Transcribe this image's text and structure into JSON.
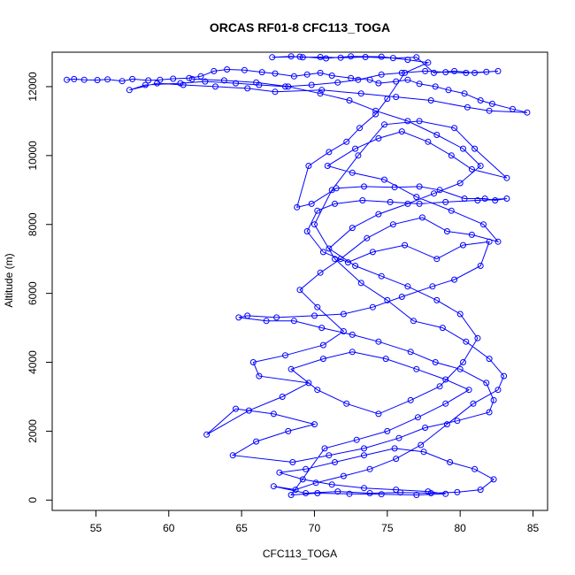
{
  "chart_data": {
    "type": "scatter",
    "title": "ORCAS RF01-8 CFC113_TOGA",
    "xlabel": "CFC113_TOGA",
    "ylabel": "Altitude (m)",
    "xlim": [
      52,
      86
    ],
    "ylim": [
      -300,
      13000
    ],
    "xticks": [
      55,
      60,
      65,
      70,
      75,
      80,
      85
    ],
    "yticks": [
      0,
      2000,
      4000,
      6000,
      8000,
      10000,
      12000
    ],
    "xtick_labels": [
      "55",
      "60",
      "65",
      "70",
      "75",
      "80",
      "85"
    ],
    "ytick_labels": [
      "0",
      "2000",
      "4000",
      "6000",
      "8000",
      "10000",
      "12000"
    ],
    "grid": false,
    "marker": "open-circle",
    "connected": true,
    "color": "#0000ff",
    "series": [
      {
        "points": [
          [
            53.0,
            12200
          ],
          [
            53.5,
            12220
          ],
          [
            54.2,
            12200
          ],
          [
            55.1,
            12190
          ],
          [
            55.8,
            12210
          ],
          [
            56.8,
            12160
          ],
          [
            57.5,
            12220
          ],
          [
            58.6,
            12180
          ],
          [
            59.4,
            12200
          ],
          [
            60.3,
            12230
          ],
          [
            61.4,
            12250
          ],
          [
            62.2,
            12300
          ],
          [
            63.1,
            12450
          ],
          [
            64.0,
            12500
          ],
          [
            65.2,
            12480
          ],
          [
            66.4,
            12420
          ],
          [
            67.3,
            12380
          ],
          [
            68.6,
            12300
          ],
          [
            69.5,
            12350
          ],
          [
            70.4,
            12400
          ],
          [
            71.2,
            12320
          ],
          [
            72.5,
            12250
          ],
          [
            73.8,
            12200
          ],
          [
            74.4,
            12100
          ],
          [
            75.6,
            12150
          ],
          [
            76.4,
            12200
          ],
          [
            77.2,
            12080
          ],
          [
            78.3,
            12000
          ],
          [
            79.2,
            11900
          ],
          [
            80.3,
            11800
          ],
          [
            81.4,
            11600
          ],
          [
            82.2,
            11500
          ],
          [
            83.6,
            11350
          ],
          [
            84.6,
            11250
          ],
          [
            82.0,
            11300
          ],
          [
            80.5,
            11400
          ],
          [
            78.0,
            11600
          ],
          [
            75.6,
            11700
          ],
          [
            73.2,
            11800
          ],
          [
            70.5,
            11900
          ],
          [
            67.3,
            11850
          ],
          [
            65.4,
            11950
          ],
          [
            63.2,
            12000
          ],
          [
            61.0,
            12050
          ],
          [
            59.2,
            12100
          ],
          [
            57.3,
            11900
          ],
          [
            58.4,
            12050
          ],
          [
            60.8,
            12100
          ],
          [
            62.5,
            12150
          ],
          [
            64.6,
            12100
          ],
          [
            66.2,
            12050
          ],
          [
            68.0,
            12000
          ],
          [
            69.8,
            12050
          ],
          [
            71.6,
            12120
          ],
          [
            73.0,
            12200
          ],
          [
            74.6,
            12350
          ],
          [
            76.0,
            12400
          ],
          [
            77.6,
            12450
          ],
          [
            79.0,
            12420
          ],
          [
            80.4,
            12400
          ],
          [
            81.8,
            12430
          ],
          [
            82.6,
            12450
          ],
          [
            81.0,
            12400
          ],
          [
            79.6,
            12450
          ],
          [
            78.2,
            12400
          ],
          [
            77.0,
            12850
          ],
          [
            75.4,
            12830
          ],
          [
            73.5,
            12860
          ],
          [
            71.8,
            12840
          ],
          [
            70.4,
            12860
          ],
          [
            69.2,
            12850
          ],
          [
            68.4,
            12880
          ],
          [
            67.1,
            12850
          ],
          [
            69.0,
            12870
          ],
          [
            70.8,
            12820
          ],
          [
            72.5,
            12880
          ],
          [
            74.6,
            12870
          ],
          [
            76.4,
            12780
          ],
          [
            77.8,
            12700
          ],
          [
            76.2,
            12400
          ],
          [
            75.0,
            11650
          ],
          [
            74.2,
            11200
          ],
          [
            73.1,
            10800
          ],
          [
            72.2,
            10400
          ],
          [
            71.0,
            10100
          ],
          [
            69.6,
            9700
          ],
          [
            68.8,
            8500
          ],
          [
            69.8,
            8600
          ],
          [
            71.5,
            9050
          ],
          [
            73.4,
            9100
          ],
          [
            75.5,
            9080
          ],
          [
            77.2,
            9100
          ],
          [
            78.6,
            9000
          ],
          [
            80.3,
            8750
          ],
          [
            81.7,
            8750
          ],
          [
            82.4,
            8700
          ],
          [
            83.2,
            8750
          ],
          [
            81.2,
            8700
          ],
          [
            79.0,
            8650
          ],
          [
            77.2,
            8600
          ],
          [
            75.2,
            8650
          ],
          [
            73.3,
            8700
          ],
          [
            71.4,
            8600
          ],
          [
            70.2,
            8400
          ],
          [
            69.5,
            7800
          ],
          [
            70.6,
            7200
          ],
          [
            72.3,
            6900
          ],
          [
            74.0,
            7200
          ],
          [
            76.2,
            7400
          ],
          [
            78.4,
            7000
          ],
          [
            80.2,
            7400
          ],
          [
            82.0,
            7500
          ],
          [
            81.4,
            6800
          ],
          [
            79.6,
            6400
          ],
          [
            78.1,
            6200
          ],
          [
            76.0,
            5900
          ],
          [
            74.0,
            5600
          ],
          [
            72.0,
            5400
          ],
          [
            70.0,
            5350
          ],
          [
            67.4,
            5300
          ],
          [
            65.4,
            5350
          ],
          [
            64.8,
            5300
          ],
          [
            66.7,
            5200
          ],
          [
            68.6,
            5200
          ],
          [
            70.5,
            5000
          ],
          [
            72.6,
            4800
          ],
          [
            74.4,
            4600
          ],
          [
            76.6,
            4300
          ],
          [
            78.3,
            4000
          ],
          [
            80.0,
            3800
          ],
          [
            81.8,
            3400
          ],
          [
            82.3,
            2900
          ],
          [
            82.0,
            2550
          ],
          [
            79.8,
            2300
          ],
          [
            77.6,
            2100
          ],
          [
            75.8,
            1800
          ],
          [
            73.4,
            1500
          ],
          [
            71.0,
            1300
          ],
          [
            68.5,
            1100
          ],
          [
            64.4,
            1300
          ],
          [
            66.0,
            1700
          ],
          [
            68.2,
            2000
          ],
          [
            70.0,
            2200
          ],
          [
            67.2,
            2500
          ],
          [
            64.6,
            2650
          ],
          [
            62.6,
            1900
          ],
          [
            65.5,
            2600
          ],
          [
            67.8,
            3000
          ],
          [
            69.6,
            3400
          ],
          [
            66.2,
            3600
          ],
          [
            65.8,
            4000
          ],
          [
            68.0,
            4200
          ],
          [
            70.6,
            4500
          ],
          [
            72.0,
            4900
          ],
          [
            70.2,
            5600
          ],
          [
            69.0,
            6100
          ],
          [
            70.4,
            6600
          ],
          [
            71.8,
            7000
          ],
          [
            73.6,
            7600
          ],
          [
            75.4,
            8000
          ],
          [
            77.4,
            8200
          ],
          [
            79.1,
            7800
          ],
          [
            80.8,
            7700
          ],
          [
            82.6,
            7500
          ],
          [
            81.6,
            8000
          ],
          [
            79.4,
            8400
          ],
          [
            77.0,
            8800
          ],
          [
            74.8,
            9300
          ],
          [
            72.6,
            9500
          ],
          [
            70.9,
            9700
          ],
          [
            72.8,
            10200
          ],
          [
            74.4,
            10500
          ],
          [
            76.0,
            10700
          ],
          [
            77.8,
            10400
          ],
          [
            79.4,
            10000
          ],
          [
            80.8,
            9600
          ],
          [
            83.2,
            9350
          ],
          [
            81.0,
            10200
          ],
          [
            79.6,
            10800
          ],
          [
            77.2,
            11000
          ],
          [
            74.8,
            10900
          ],
          [
            73.0,
            10000
          ],
          [
            71.2,
            9000
          ],
          [
            70.0,
            8000
          ],
          [
            71.4,
            7000
          ],
          [
            73.2,
            6300
          ],
          [
            75.0,
            5800
          ],
          [
            76.8,
            5200
          ],
          [
            78.8,
            5000
          ],
          [
            80.4,
            4600
          ],
          [
            82.0,
            4100
          ],
          [
            83.0,
            3600
          ],
          [
            82.6,
            3200
          ],
          [
            80.9,
            2800
          ],
          [
            79.1,
            2200
          ],
          [
            77.3,
            1600
          ],
          [
            75.6,
            1200
          ],
          [
            73.8,
            900
          ],
          [
            72.0,
            700
          ],
          [
            70.1,
            500
          ],
          [
            68.7,
            300
          ],
          [
            67.2,
            400
          ],
          [
            69.4,
            200
          ],
          [
            71.6,
            250
          ],
          [
            73.8,
            200
          ],
          [
            75.9,
            220
          ],
          [
            78.0,
            200
          ],
          [
            79.8,
            230
          ],
          [
            81.4,
            300
          ],
          [
            82.3,
            600
          ],
          [
            81.0,
            900
          ],
          [
            79.3,
            1100
          ],
          [
            77.5,
            1400
          ],
          [
            75.5,
            1500
          ],
          [
            73.4,
            1300
          ],
          [
            71.4,
            1100
          ],
          [
            69.4,
            900
          ],
          [
            67.6,
            800
          ],
          [
            69.2,
            600
          ],
          [
            71.2,
            450
          ],
          [
            73.4,
            350
          ],
          [
            75.6,
            300
          ],
          [
            77.8,
            250
          ],
          [
            79.0,
            180
          ],
          [
            77.0,
            150
          ],
          [
            74.6,
            170
          ],
          [
            72.4,
            180
          ],
          [
            70.2,
            200
          ],
          [
            68.4,
            150
          ],
          [
            70.7,
            1500
          ],
          [
            72.9,
            1750
          ],
          [
            75.0,
            2000
          ],
          [
            77.1,
            2400
          ],
          [
            79.0,
            2800
          ],
          [
            80.6,
            3200
          ],
          [
            79.0,
            3500
          ],
          [
            77.0,
            3800
          ],
          [
            74.9,
            4100
          ],
          [
            72.6,
            4300
          ],
          [
            70.6,
            4100
          ],
          [
            68.4,
            3800
          ],
          [
            70.2,
            3200
          ],
          [
            72.2,
            2800
          ],
          [
            74.4,
            2500
          ],
          [
            76.6,
            2900
          ],
          [
            78.6,
            3300
          ],
          [
            80.2,
            4000
          ],
          [
            81.2,
            4700
          ],
          [
            80.0,
            5400
          ],
          [
            78.4,
            5800
          ],
          [
            76.4,
            6200
          ],
          [
            74.6,
            6500
          ],
          [
            72.8,
            6800
          ],
          [
            71.0,
            7300
          ],
          [
            72.6,
            7900
          ],
          [
            74.4,
            8300
          ],
          [
            76.4,
            8600
          ],
          [
            78.2,
            8900
          ],
          [
            80.0,
            9200
          ],
          [
            81.4,
            9700
          ],
          [
            80.2,
            10200
          ],
          [
            78.4,
            10600
          ],
          [
            76.4,
            11000
          ],
          [
            74.2,
            11300
          ],
          [
            72.4,
            11600
          ],
          [
            70.4,
            11800
          ],
          [
            68.2,
            12000
          ],
          [
            66.0,
            12120
          ],
          [
            63.8,
            12180
          ],
          [
            61.6,
            12220
          ]
        ]
      }
    ]
  }
}
